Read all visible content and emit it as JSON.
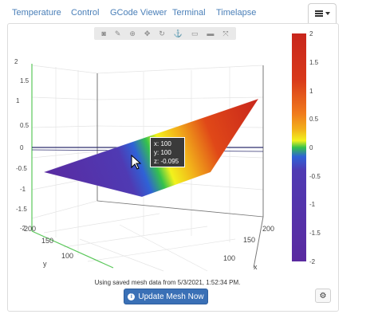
{
  "tabs": [
    "Temperature",
    "Control",
    "GCode Viewer",
    "Terminal",
    "Timelapse"
  ],
  "menu": {
    "icon": "hamburger-icon",
    "caret": "caret-down-icon"
  },
  "modebar": {
    "icons": [
      "camera-icon",
      "pencil-icon",
      "zoom-icon",
      "pan-icon",
      "rotate-icon",
      "orbit-icon",
      "reset-icon",
      "hover-icon",
      "plotly-logo-icon"
    ]
  },
  "chart_data": {
    "type": "surface",
    "x_ticks": [
      "100",
      "150",
      "200"
    ],
    "y_ticks": [
      "100",
      "150",
      "200"
    ],
    "z_ticks": [
      "2",
      "1.5",
      "1",
      "0.5",
      "0",
      "-0.5",
      "-1",
      "-1.5",
      "-2"
    ],
    "xlabel": "x",
    "ylabel": "y",
    "colorbar": {
      "ticks": [
        "2",
        "1.5",
        "1",
        "0.5",
        "0",
        "-0.5",
        "-1",
        "-1.5",
        "-2"
      ],
      "range": [
        -2,
        2
      ],
      "colors": [
        "#5a2aa0",
        "#4f3ab3",
        "#2f62d6",
        "#f2f21c",
        "#32c24e",
        "#f2b01a",
        "#e04818",
        "#c8261c"
      ]
    },
    "hover": {
      "x": "x: 100",
      "y": "y: 100",
      "z": "z: -0.095"
    }
  },
  "footer": {
    "info": "Using saved mesh data from 5/3/2021, 1:52:34 PM.",
    "button_label": "Update Mesh Now",
    "button_icon": "info-circle-icon",
    "settings_icon": "gear-icon"
  }
}
